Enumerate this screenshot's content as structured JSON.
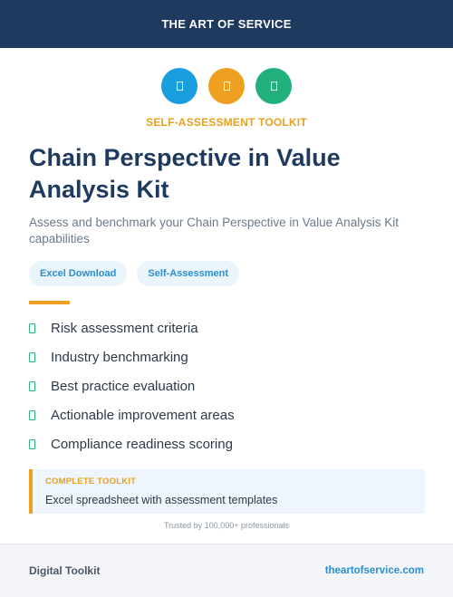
{
  "header": {
    "brand": "THE ART OF SERVICE"
  },
  "icons": [
    {
      "name": "document-icon",
      "color": "#1a9ee0"
    },
    {
      "name": "clipboard-icon",
      "color": "#f0a020"
    },
    {
      "name": "chart-icon",
      "color": "#22b07d"
    }
  ],
  "kicker": "SELF-ASSESSMENT TOOLKIT",
  "title_line1": "Chain Perspective in Value",
  "title_line2": "Analysis Kit",
  "subtitle": "Assess and benchmark your Chain Perspective in Value Analysis Kit capabilities",
  "tags": [
    "Excel Download",
    "Self-Assessment"
  ],
  "features": [
    "Risk assessment criteria",
    "Industry benchmarking",
    "Best practice evaluation",
    "Actionable improvement areas",
    "Compliance readiness scoring"
  ],
  "callout": {
    "label": "COMPLETE TOOLKIT",
    "text": "Excel spreadsheet with assessment templates"
  },
  "trust": "Trusted by 100,000+ professionals",
  "footer": {
    "left": "Digital Toolkit",
    "right": "theartofservice.com"
  }
}
